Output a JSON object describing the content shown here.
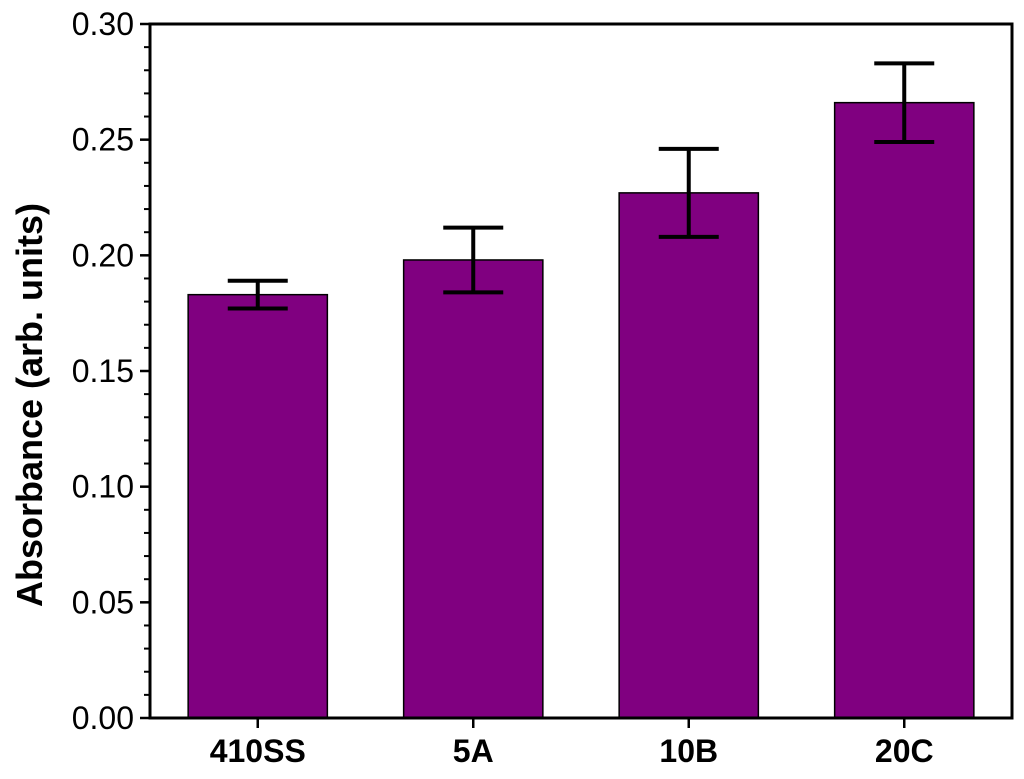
{
  "chart_data": {
    "type": "bar",
    "title": "",
    "xlabel": "",
    "ylabel": "Absorbance (arb. units)",
    "categories": [
      "410SS",
      "5A",
      "10B",
      "20C"
    ],
    "values": [
      0.183,
      0.198,
      0.227,
      0.266
    ],
    "errors": [
      0.006,
      0.014,
      0.019,
      0.017
    ],
    "ylim": [
      0.0,
      0.3
    ],
    "yticks": [
      "0.00",
      "0.05",
      "0.10",
      "0.15",
      "0.20",
      "0.25",
      "0.30"
    ],
    "bar_color": "#800080",
    "grid": false
  }
}
